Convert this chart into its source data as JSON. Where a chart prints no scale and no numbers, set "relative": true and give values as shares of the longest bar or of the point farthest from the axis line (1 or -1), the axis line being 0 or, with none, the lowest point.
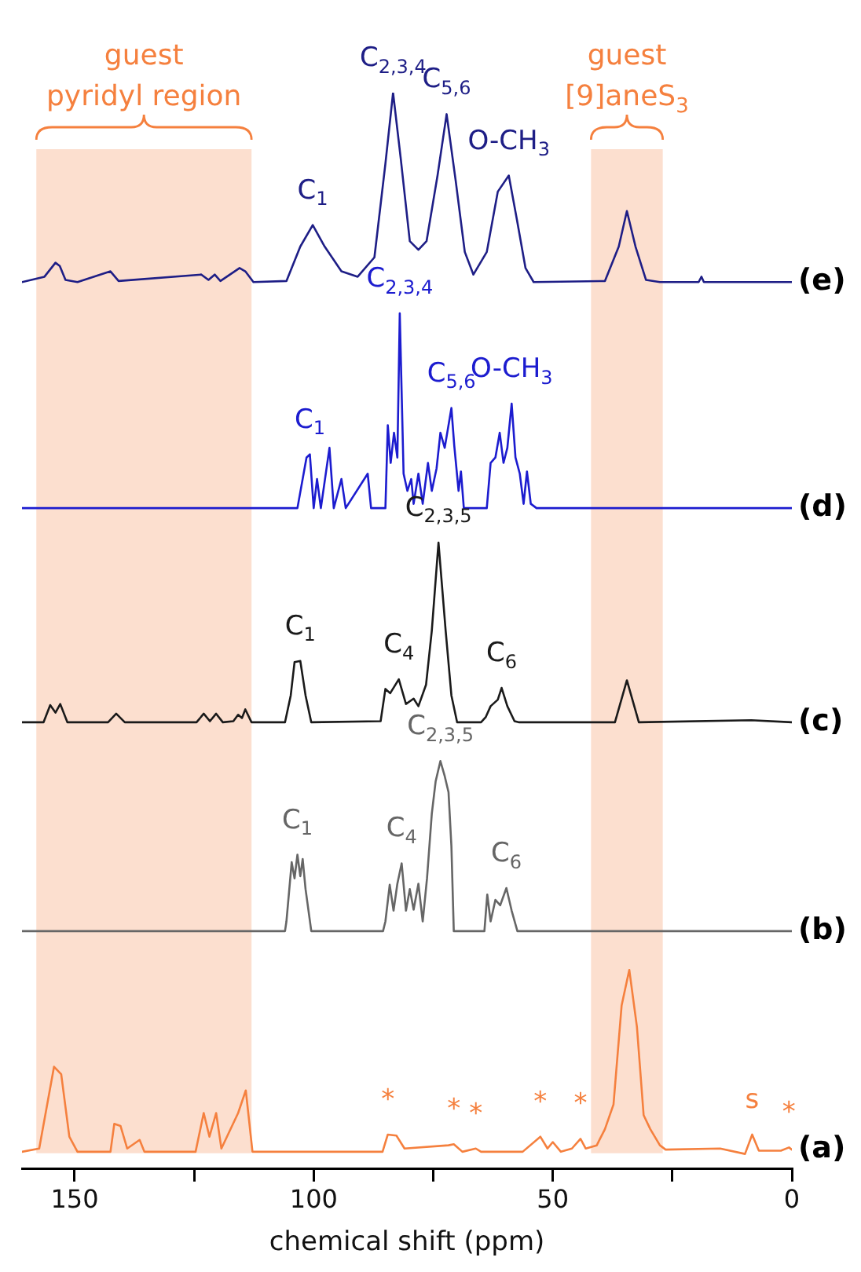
{
  "chart_data": {
    "type": "line",
    "relative": true,
    "xlabel": "chemical shift (ppm)",
    "xlim": [
      161,
      0
    ],
    "xticks": [
      0,
      {
        "value": 25,
        "label": null
      },
      50,
      {
        "value": 75,
        "label": null
      },
      100,
      {
        "value": 125,
        "label": null
      },
      150
    ],
    "marker": "none",
    "grid": false,
    "bands": [
      {
        "axis": "x",
        "from": 158,
        "to": 113,
        "label": "guest\npyridyl region",
        "color": "#f5803e"
      },
      {
        "axis": "x",
        "from": 42,
        "to": 27,
        "label": "guest\n[9]aneS$_{3}$",
        "color": "#f5803e"
      }
    ],
    "series": [
      {
        "name": "(a)",
        "color": "#f5803e",
        "x": [
          161,
          157.4,
          154.3,
          152.8,
          151.1,
          149.4,
          142.5,
          141.7,
          140.4,
          139,
          136.4,
          135.4,
          124.7,
          123,
          121.8,
          120.4,
          119.3,
          115.8,
          114.2,
          112.8,
          85.6,
          84.5,
          82.7,
          81,
          71.8,
          70.7,
          68.9,
          66.1,
          65,
          56.3,
          52.6,
          51.1,
          50,
          48.3,
          46,
          44.2,
          43.1,
          40.8,
          39.1,
          37.3,
          35.6,
          34,
          32.4,
          31,
          29.6,
          27.6,
          26.4,
          15,
          9.8,
          8.3,
          6.9,
          2.3,
          0.6,
          0
        ],
        "values": [
          0.016,
          0.019,
          0.095,
          0.088,
          0.03,
          0.016,
          0.016,
          0.042,
          0.04,
          0.019,
          0.027,
          0.016,
          0.016,
          0.052,
          0.03,
          0.052,
          0.019,
          0.052,
          0.073,
          0.016,
          0.016,
          0.032,
          0.031,
          0.019,
          0.022,
          0.023,
          0.016,
          0.019,
          0.016,
          0.016,
          0.03,
          0.019,
          0.025,
          0.016,
          0.019,
          0.028,
          0.019,
          0.022,
          0.037,
          0.06,
          0.152,
          0.185,
          0.132,
          0.05,
          0.037,
          0.022,
          0.018,
          0.019,
          0.014,
          0.032,
          0.017,
          0.017,
          0.02,
          0.018
        ]
      },
      {
        "name": "(b)",
        "color": "#666666",
        "x": [
          161,
          106,
          105.7,
          104.6,
          104,
          103.4,
          102.8,
          102.3,
          101.7,
          100.5,
          85.5,
          85,
          84.1,
          83.3,
          82.5,
          81.6,
          80.7,
          79.9,
          79.1,
          78.1,
          77.2,
          76.3,
          75.3,
          74.5,
          73.5,
          72.6,
          71.8,
          71.2,
          70.7,
          64.3,
          63.7,
          63,
          62,
          61,
          59.7,
          58.6,
          57.4,
          0
        ],
        "values": [
          0.221,
          0.221,
          0.23,
          0.285,
          0.27,
          0.292,
          0.272,
          0.288,
          0.26,
          0.221,
          0.221,
          0.23,
          0.264,
          0.24,
          0.265,
          0.284,
          0.24,
          0.26,
          0.241,
          0.265,
          0.23,
          0.27,
          0.33,
          0.36,
          0.379,
          0.365,
          0.35,
          0.3,
          0.221,
          0.221,
          0.255,
          0.23,
          0.25,
          0.245,
          0.261,
          0.24,
          0.221,
          0.221
        ]
      },
      {
        "name": "(c)",
        "color": "#1a1a1a",
        "x": [
          161,
          156.5,
          155.1,
          154,
          153,
          151.5,
          143,
          141.3,
          139.5,
          124.5,
          123,
          121.7,
          120.4,
          119,
          116.8,
          115.8,
          115,
          114.3,
          113,
          106,
          104.8,
          104,
          102.8,
          101.7,
          100.5,
          86,
          85,
          84,
          82.2,
          80.7,
          79.1,
          78.1,
          76.5,
          75.3,
          73.9,
          72.4,
          71.2,
          70,
          65,
          64,
          63,
          61.5,
          60.7,
          59.5,
          58,
          57,
          37,
          34.5,
          32,
          8.5,
          0
        ],
        "values": [
          0.415,
          0.415,
          0.431,
          0.424,
          0.432,
          0.415,
          0.415,
          0.423,
          0.415,
          0.415,
          0.423,
          0.416,
          0.423,
          0.415,
          0.416,
          0.422,
          0.419,
          0.427,
          0.415,
          0.415,
          0.44,
          0.471,
          0.472,
          0.44,
          0.415,
          0.416,
          0.446,
          0.442,
          0.455,
          0.432,
          0.437,
          0.43,
          0.45,
          0.5,
          0.582,
          0.5,
          0.44,
          0.415,
          0.415,
          0.42,
          0.43,
          0.436,
          0.447,
          0.43,
          0.416,
          0.415,
          0.415,
          0.454,
          0.415,
          0.417,
          0.415
        ]
      },
      {
        "name": "(d)",
        "color": "#1c1ccf",
        "x": [
          161,
          103.4,
          101.5,
          100.8,
          100,
          99.3,
          98.5,
          96.7,
          95.8,
          94.2,
          93.3,
          88.7,
          88,
          85,
          84.5,
          83.9,
          83.2,
          82.5,
          82,
          81.2,
          80.4,
          79.6,
          79.1,
          78.1,
          77.2,
          76.1,
          75.3,
          74.3,
          73.5,
          72.6,
          71.2,
          70.6,
          69.7,
          69.2,
          68.6,
          63.8,
          63,
          62,
          61.1,
          60.3,
          59.5,
          58.6,
          57.8,
          56.9,
          56.1,
          55.4,
          54.6,
          53.4,
          0
        ],
        "values": [
          0.614,
          0.614,
          0.661,
          0.664,
          0.614,
          0.641,
          0.614,
          0.67,
          0.614,
          0.641,
          0.614,
          0.646,
          0.614,
          0.614,
          0.691,
          0.656,
          0.684,
          0.661,
          0.795,
          0.646,
          0.63,
          0.641,
          0.618,
          0.646,
          0.618,
          0.656,
          0.63,
          0.651,
          0.684,
          0.67,
          0.707,
          0.672,
          0.63,
          0.648,
          0.614,
          0.614,
          0.656,
          0.661,
          0.684,
          0.656,
          0.67,
          0.711,
          0.661,
          0.646,
          0.618,
          0.648,
          0.618,
          0.614,
          0.614
        ]
      },
      {
        "name": "(e)",
        "color": "#1e1e86",
        "x": [
          161,
          156.3,
          154,
          153.1,
          151.9,
          149.4,
          142.5,
          140.8,
          123.5,
          122,
          120.7,
          119.5,
          115.5,
          114.3,
          112.6,
          105.7,
          102.8,
          100.2,
          97.7,
          94.2,
          90.8,
          87.3,
          85,
          83.4,
          81.8,
          79.9,
          78.1,
          76.4,
          74.1,
          72.2,
          70.3,
          68.4,
          66.6,
          63.8,
          61.5,
          59.2,
          57.5,
          55.7,
          54,
          39.1,
          36.2,
          34.5,
          32.7,
          30.5,
          27.6,
          19.5,
          18.9,
          18.4,
          0
        ],
        "values": [
          0.824,
          0.829,
          0.842,
          0.839,
          0.826,
          0.824,
          0.834,
          0.825,
          0.831,
          0.826,
          0.831,
          0.825,
          0.837,
          0.834,
          0.824,
          0.825,
          0.857,
          0.877,
          0.857,
          0.834,
          0.829,
          0.847,
          0.934,
          1.0,
          0.939,
          0.862,
          0.854,
          0.862,
          0.923,
          0.98,
          0.918,
          0.852,
          0.831,
          0.852,
          0.908,
          0.923,
          0.882,
          0.837,
          0.824,
          0.825,
          0.857,
          0.89,
          0.857,
          0.826,
          0.824,
          0.824,
          0.829,
          0.824,
          0.824
        ]
      }
    ],
    "annotations": [
      {
        "text": "C$_{1}$",
        "x": 100.2,
        "y": 0.877
      },
      {
        "text": "C$_{2,3,4}$",
        "x": 83.4,
        "y": 1.0
      },
      {
        "text": "C$_{5,6}$",
        "x": 72.2,
        "y": 0.98
      },
      {
        "text": "O-CH$_{3}$",
        "x": 59.2,
        "y": 0.923
      },
      {
        "text": "C$_{1}$",
        "x": 100.8,
        "y": 0.664
      },
      {
        "text": "C$_{2,3,4}$",
        "x": 82,
        "y": 0.795
      },
      {
        "text": "C$_{5,6}$",
        "x": 71.2,
        "y": 0.707
      },
      {
        "text": "O-CH$_{3}$",
        "x": 58.6,
        "y": 0.711
      },
      {
        "text": "C$_{1}$",
        "x": 102.8,
        "y": 0.472
      },
      {
        "text": "C$_{4}$",
        "x": 82.2,
        "y": 0.455
      },
      {
        "text": "C$_{2,3,5}$",
        "x": 73.9,
        "y": 0.582
      },
      {
        "text": "C$_{6}$",
        "x": 60.7,
        "y": 0.447
      },
      {
        "text": "C$_{1}$",
        "x": 103.4,
        "y": 0.292
      },
      {
        "text": "C$_{4}$",
        "x": 81.6,
        "y": 0.284
      },
      {
        "text": "C$_{2,3,5}$",
        "x": 73.5,
        "y": 0.379
      },
      {
        "text": "C$_{6}$",
        "x": 59.7,
        "y": 0.261
      },
      {
        "text": "*",
        "x": 84.5,
        "y": 0.032
      },
      {
        "text": "*",
        "x": 70.7,
        "y": 0.023
      },
      {
        "text": "*",
        "x": 66.1,
        "y": 0.019
      },
      {
        "text": "*",
        "x": 52.6,
        "y": 0.03
      },
      {
        "text": "*",
        "x": 44.2,
        "y": 0.028
      },
      {
        "text": "s",
        "x": 8.3,
        "y": 0.032
      },
      {
        "text": "*",
        "x": 0.6,
        "y": 0.02
      }
    ]
  }
}
